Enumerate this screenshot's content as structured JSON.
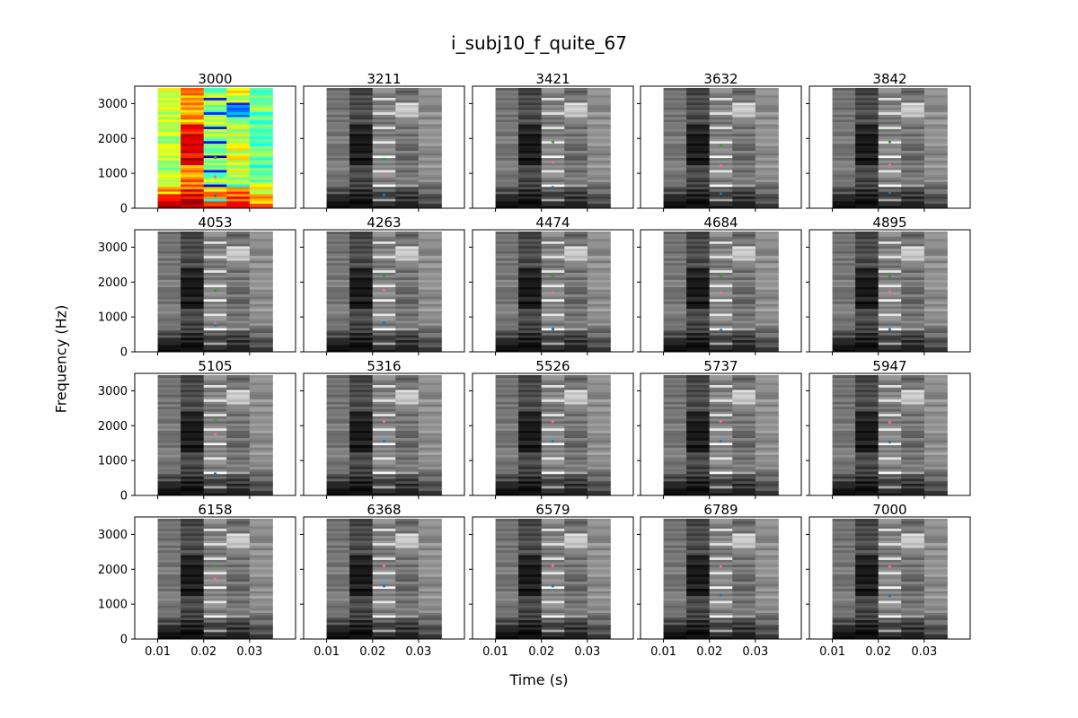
{
  "chart_data": {
    "type": "heatmap",
    "title": "i_subj10_f_quite_67",
    "xlabel": "Time (s)",
    "ylabel": "Frequency (Hz)",
    "xlim": [
      0.005,
      0.04
    ],
    "ylim": [
      0,
      3500
    ],
    "data_extent": {
      "t": [
        0.01,
        0.035
      ],
      "f": [
        0,
        3450
      ]
    },
    "xticks": [
      0.01,
      0.02,
      0.03
    ],
    "xtick_labels": [
      "0.01",
      "0.02",
      "0.03"
    ],
    "yticks": [
      0,
      1000,
      2000,
      3000
    ],
    "ytick_labels": [
      "0",
      "1000",
      "2000",
      "3000"
    ],
    "colormaps": {
      "first_panel": "jet",
      "other_panels": "gray"
    },
    "grid": false,
    "panels": [
      {
        "title": "3000",
        "points": [
          {
            "t": 0.0225,
            "f": 1450,
            "color": "#2ca02c"
          },
          {
            "t": 0.0225,
            "f": 900,
            "color": "#ff6b8b"
          },
          {
            "t": 0.0225,
            "f": 360,
            "color": "#1f77b4"
          }
        ]
      },
      {
        "title": "3211",
        "points": [
          {
            "t": 0.0225,
            "f": 1400,
            "color": "#2ca02c"
          },
          {
            "t": 0.0225,
            "f": 930,
            "color": "#ff6b8b"
          },
          {
            "t": 0.0225,
            "f": 380,
            "color": "#1f77b4"
          }
        ]
      },
      {
        "title": "3421",
        "points": [
          {
            "t": 0.0225,
            "f": 1900,
            "color": "#2ca02c"
          },
          {
            "t": 0.0225,
            "f": 1320,
            "color": "#ff6b8b"
          },
          {
            "t": 0.0225,
            "f": 600,
            "color": "#1f77b4"
          }
        ]
      },
      {
        "title": "3632",
        "points": [
          {
            "t": 0.0225,
            "f": 1800,
            "color": "#2ca02c"
          },
          {
            "t": 0.0225,
            "f": 1220,
            "color": "#ff6b8b"
          },
          {
            "t": 0.0225,
            "f": 420,
            "color": "#1f77b4"
          }
        ]
      },
      {
        "title": "3842",
        "points": [
          {
            "t": 0.0225,
            "f": 1900,
            "color": "#2ca02c"
          },
          {
            "t": 0.0225,
            "f": 1240,
            "color": "#ff6b8b"
          },
          {
            "t": 0.0225,
            "f": 450,
            "color": "#1f77b4"
          }
        ]
      },
      {
        "title": "4053",
        "points": [
          {
            "t": 0.0225,
            "f": 1760,
            "color": "#2ca02c"
          },
          {
            "t": 0.0225,
            "f": 800,
            "color": "#ff6b8b"
          },
          {
            "t": 0.0225,
            "f": 760,
            "color": "#1f77b4"
          }
        ]
      },
      {
        "title": "4263",
        "points": [
          {
            "t": 0.0225,
            "f": 2170,
            "color": "#2ca02c"
          },
          {
            "t": 0.0225,
            "f": 1770,
            "color": "#ff6b8b"
          },
          {
            "t": 0.0225,
            "f": 830,
            "color": "#1f77b4"
          }
        ]
      },
      {
        "title": "4474",
        "points": [
          {
            "t": 0.0225,
            "f": 2170,
            "color": "#2ca02c"
          },
          {
            "t": 0.0225,
            "f": 1700,
            "color": "#ff6b8b"
          },
          {
            "t": 0.0225,
            "f": 650,
            "color": "#1f77b4"
          }
        ]
      },
      {
        "title": "4684",
        "points": [
          {
            "t": 0.0225,
            "f": 2150,
            "color": "#2ca02c"
          },
          {
            "t": 0.0225,
            "f": 1700,
            "color": "#ff6b8b"
          },
          {
            "t": 0.0225,
            "f": 620,
            "color": "#1f77b4"
          }
        ]
      },
      {
        "title": "4895",
        "points": [
          {
            "t": 0.0225,
            "f": 2170,
            "color": "#2ca02c"
          },
          {
            "t": 0.0225,
            "f": 1720,
            "color": "#ff6b8b"
          },
          {
            "t": 0.0225,
            "f": 640,
            "color": "#1f77b4"
          }
        ]
      },
      {
        "title": "5105",
        "points": [
          {
            "t": 0.0225,
            "f": 2140,
            "color": "#2ca02c"
          },
          {
            "t": 0.0225,
            "f": 1750,
            "color": "#ff6b8b"
          },
          {
            "t": 0.0225,
            "f": 620,
            "color": "#1f77b4"
          }
        ]
      },
      {
        "title": "5316",
        "points": [
          {
            "t": 0.0225,
            "f": 2120,
            "color": "#ff6b8b"
          },
          {
            "t": 0.0225,
            "f": 1550,
            "color": "#1f77b4"
          }
        ]
      },
      {
        "title": "5526",
        "points": [
          {
            "t": 0.0225,
            "f": 2120,
            "color": "#ff6b8b"
          },
          {
            "t": 0.0225,
            "f": 1550,
            "color": "#1f77b4"
          }
        ]
      },
      {
        "title": "5737",
        "points": [
          {
            "t": 0.0225,
            "f": 2120,
            "color": "#ff6b8b"
          },
          {
            "t": 0.0225,
            "f": 1550,
            "color": "#1f77b4"
          }
        ]
      },
      {
        "title": "5947",
        "points": [
          {
            "t": 0.0225,
            "f": 2100,
            "color": "#ff6b8b"
          },
          {
            "t": 0.0225,
            "f": 1530,
            "color": "#1f77b4"
          }
        ]
      },
      {
        "title": "6158",
        "points": [
          {
            "t": 0.0225,
            "f": 2100,
            "color": "#2ca02c"
          },
          {
            "t": 0.0225,
            "f": 1720,
            "color": "#ff6b8b"
          }
        ]
      },
      {
        "title": "6368",
        "points": [
          {
            "t": 0.0225,
            "f": 2100,
            "color": "#ff6b8b"
          },
          {
            "t": 0.0225,
            "f": 1520,
            "color": "#1f77b4"
          }
        ]
      },
      {
        "title": "6579",
        "points": [
          {
            "t": 0.0225,
            "f": 2100,
            "color": "#ff6b8b"
          },
          {
            "t": 0.0225,
            "f": 1520,
            "color": "#1f77b4"
          }
        ]
      },
      {
        "title": "6789",
        "points": [
          {
            "t": 0.0225,
            "f": 2080,
            "color": "#ff6b8b"
          },
          {
            "t": 0.0225,
            "f": 1260,
            "color": "#1f77b4"
          }
        ]
      },
      {
        "title": "7000",
        "points": [
          {
            "t": 0.0225,
            "f": 2080,
            "color": "#ff6b8b"
          },
          {
            "t": 0.0225,
            "f": 1240,
            "color": "#1f77b4"
          }
        ]
      }
    ]
  }
}
